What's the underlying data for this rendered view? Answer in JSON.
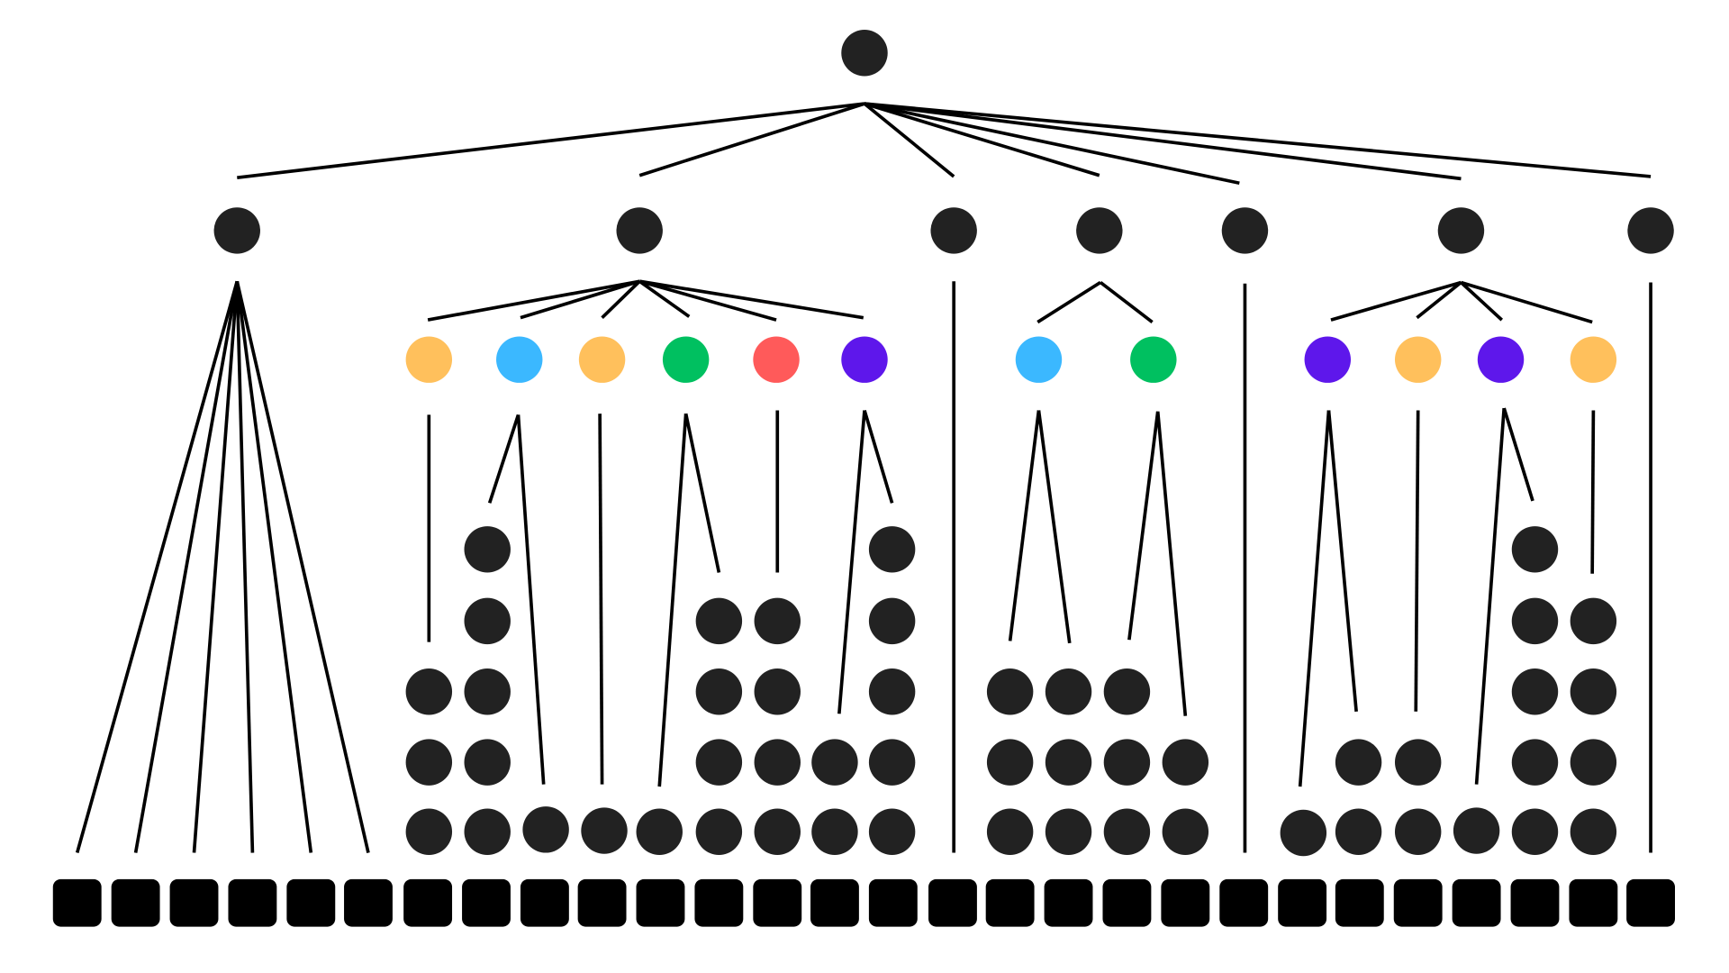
{
  "colors": {
    "dark": "#222222",
    "leaf": "#000000",
    "edge": "#000000",
    "orange": "#FFC05C",
    "blue": "#3BB8FF",
    "green": "#00C060",
    "red": "#FF5A5A",
    "purple": "#5E17EB"
  },
  "root": {
    "shape": "circle",
    "color": "dark"
  },
  "level1_count": 7,
  "colored_nodes": [
    {
      "parent": 2,
      "color": "orange"
    },
    {
      "parent": 2,
      "color": "blue"
    },
    {
      "parent": 2,
      "color": "orange"
    },
    {
      "parent": 2,
      "color": "green"
    },
    {
      "parent": 2,
      "color": "red"
    },
    {
      "parent": 2,
      "color": "purple"
    },
    {
      "parent": 4,
      "color": "blue"
    },
    {
      "parent": 4,
      "color": "green"
    },
    {
      "parent": 6,
      "color": "purple"
    },
    {
      "parent": 6,
      "color": "orange"
    },
    {
      "parent": 6,
      "color": "purple"
    },
    {
      "parent": 6,
      "color": "orange"
    }
  ],
  "leaf_shape": "rounded-square",
  "leaf_count": 28
}
